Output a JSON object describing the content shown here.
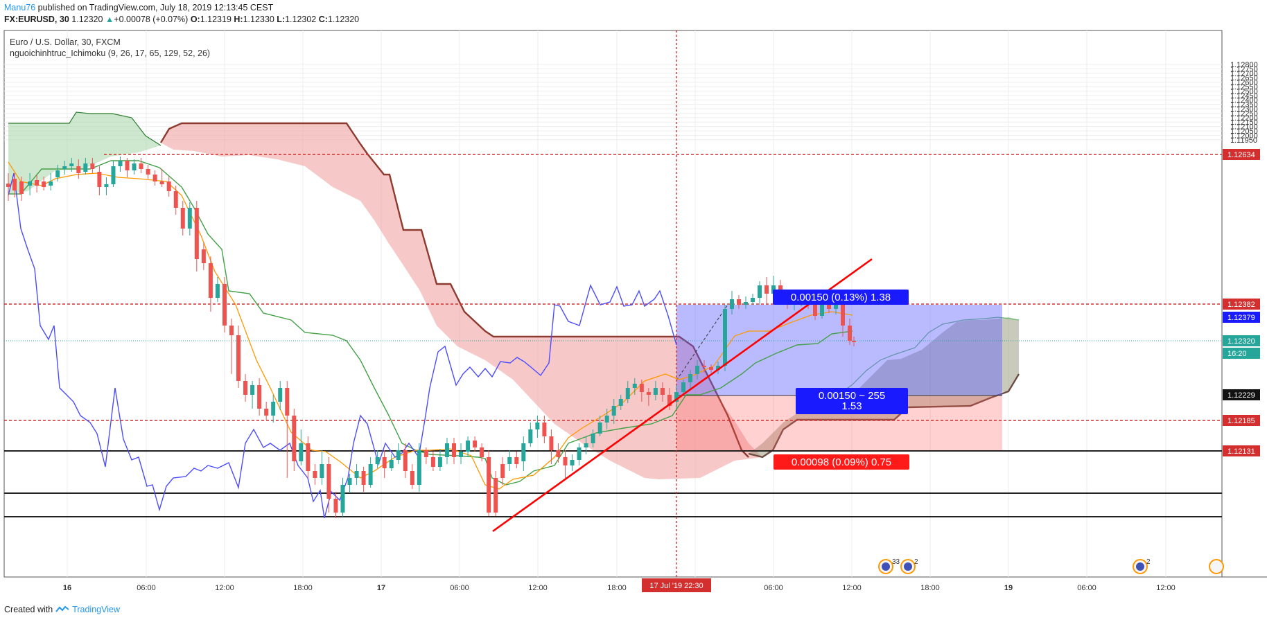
{
  "header": {
    "author": "Manu76",
    "published": "published on TradingView.com, July 18, 2019 12:13:45 CEST",
    "symbol_line": "FX:EURUSD, 30",
    "last": "1.12320",
    "change": "+0.00078 (+0.07%)",
    "ohlc": [
      {
        "label": "O:",
        "value": "1.12319"
      },
      {
        "label": "H:",
        "value": "1.12330"
      },
      {
        "label": "L:",
        "value": "1.12302"
      },
      {
        "label": "C:",
        "value": "1.12320"
      }
    ]
  },
  "legend": {
    "title": "Euro / U.S. Dollar, 30, FXCM",
    "indicator": "nguoichinhtruc_Ichimoku (9, 26, 17, 65, 129, 52, 26)"
  },
  "footer": {
    "created_with": "Created with",
    "brand": "TradingView"
  },
  "colors": {
    "up": "#26a69a",
    "down": "#ef5350",
    "cloud_bull": "#a5d6a7",
    "cloud_bear": "#ef9a9a",
    "lagging": "#4c4cff",
    "tenkan": "#ff9800",
    "kijun": "#43a047",
    "trend": "#ff0000"
  },
  "chart_data": {
    "type": "candlestick",
    "symbol": "EURUSD",
    "timeframe": "30",
    "ylim": [
      1.1192,
      1.1283
    ],
    "x_axis_labels": [
      "16",
      "06:00",
      "12:00",
      "18:00",
      "17",
      "06:00",
      "12:00",
      "18:00",
      "06:00",
      "12:00",
      "18:00",
      "19",
      "06:00",
      "12:00"
    ],
    "y_ticks": [
      "1.12800",
      "1.12750",
      "1.12700",
      "1.12650",
      "1.12600",
      "1.12550",
      "1.12500",
      "1.12450",
      "1.12400",
      "1.12350",
      "1.12300",
      "1.12250",
      "1.12200",
      "1.12150",
      "1.12100",
      "1.12050",
      "1.12000",
      "1.11950"
    ],
    "price_labels": [
      {
        "text": "1.12634",
        "kind": "hline"
      },
      {
        "text": "1.12382",
        "kind": "hline"
      },
      {
        "text": "1.12379",
        "kind": "tp"
      },
      {
        "text": "1.12320",
        "kind": "last"
      },
      {
        "text": "16:20",
        "kind": "countdown"
      },
      {
        "text": "1.12229",
        "kind": "cross"
      },
      {
        "text": "1.12185",
        "kind": "hline"
      },
      {
        "text": "1.12131",
        "kind": "hline"
      }
    ],
    "crosshair_time": "17 Jul '19   22:30",
    "position": {
      "target_label": "0.00150 (0.13%) 1.38",
      "entry_label_1": "0.00150 ~ 255",
      "entry_label_2": "1.53",
      "stop_label": "0.00098 (0.09%) 0.75"
    },
    "events": [
      {
        "count": "33"
      },
      {
        "count": "2"
      },
      {
        "count": "2"
      }
    ]
  }
}
